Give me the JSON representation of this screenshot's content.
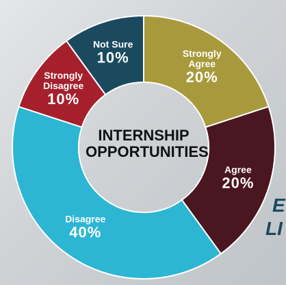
{
  "chart_data": {
    "type": "donut",
    "title": "INTERNSHIP OPPORTUNITIES",
    "categories": [
      "Strongly Agree",
      "Agree",
      "Disagree",
      "Strongly Disagree",
      "Not Sure"
    ],
    "values": [
      20,
      20,
      40,
      10,
      10
    ],
    "value_labels": [
      "20%",
      "20%",
      "40%",
      "10%",
      "10%"
    ],
    "colors": [
      "#a89a3c",
      "#4a1620",
      "#2cb6d4",
      "#a5202c",
      "#1b4a5f"
    ],
    "background_text": [
      "E",
      "LI"
    ]
  }
}
